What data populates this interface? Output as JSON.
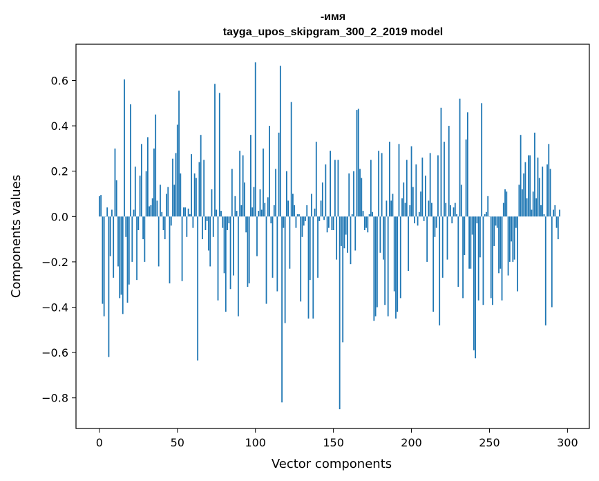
{
  "chart_data": {
    "type": "bar",
    "title": "-имя",
    "subtitle": "tayga_upos_skipgram_300_2_2019 model",
    "xlabel": "Vector components",
    "ylabel": "Components values",
    "xlim": [
      -15,
      314
    ],
    "ylim": [
      -0.935,
      0.76
    ],
    "xticks": [
      0,
      50,
      100,
      150,
      200,
      250,
      300
    ],
    "yticks": [
      -0.8,
      -0.6,
      -0.4,
      -0.2,
      0.0,
      0.2,
      0.4,
      0.6
    ],
    "ytick_labels": [
      "−0.8",
      "−0.6",
      "−0.4",
      "−0.2",
      "0.0",
      "0.2",
      "0.4",
      "0.6"
    ],
    "grid": false,
    "bar_color": "#1f77b4",
    "values": [
      0.09,
      0.095,
      -0.385,
      -0.44,
      0.0,
      0.04,
      -0.62,
      -0.175,
      0.03,
      -0.27,
      0.3,
      0.16,
      -0.22,
      -0.36,
      -0.345,
      -0.43,
      0.605,
      -0.09,
      -0.38,
      -0.3,
      0.495,
      -0.2,
      0.03,
      0.22,
      -0.28,
      -0.06,
      0.18,
      0.32,
      -0.1,
      -0.2,
      0.2,
      0.35,
      0.045,
      0.05,
      0.08,
      0.3,
      0.45,
      0.07,
      -0.22,
      0.14,
      0.02,
      -0.06,
      -0.1,
      0.1,
      0.13,
      -0.295,
      -0.04,
      0.255,
      0.14,
      0.28,
      0.405,
      0.555,
      0.19,
      -0.285,
      0.04,
      0.04,
      -0.09,
      0.035,
      0.01,
      0.275,
      -0.05,
      0.19,
      0.17,
      -0.635,
      0.24,
      0.36,
      -0.1,
      0.25,
      -0.06,
      -0.02,
      -0.15,
      -0.22,
      0.12,
      -0.09,
      0.585,
      0.03,
      -0.37,
      0.545,
      0.025,
      -0.05,
      -0.25,
      -0.42,
      -0.06,
      -0.03,
      -0.32,
      0.21,
      -0.26,
      0.09,
      0.025,
      -0.44,
      0.29,
      0.05,
      0.27,
      0.15,
      -0.07,
      -0.31,
      -0.295,
      0.36,
      0.04,
      0.13,
      0.68,
      -0.175,
      0.025,
      0.12,
      0.03,
      0.3,
      0.06,
      -0.385,
      0.085,
      0.4,
      -0.03,
      -0.27,
      0.05,
      0.21,
      -0.33,
      0.37,
      0.665,
      -0.82,
      -0.05,
      -0.47,
      0.2,
      0.07,
      -0.23,
      0.505,
      0.1,
      0.05,
      -0.05,
      0.01,
      0.01,
      -0.375,
      -0.09,
      -0.04,
      -0.02,
      0.05,
      -0.45,
      -0.28,
      0.1,
      -0.45,
      0.035,
      0.33,
      -0.27,
      -0.02,
      0.07,
      0.15,
      -0.015,
      0.23,
      -0.07,
      -0.05,
      0.29,
      -0.06,
      -0.06,
      0.25,
      -0.19,
      0.25,
      -0.85,
      -0.13,
      -0.555,
      -0.14,
      -0.08,
      -0.16,
      0.19,
      -0.21,
      0.01,
      0.2,
      -0.15,
      0.47,
      0.475,
      0.21,
      0.17,
      0.025,
      -0.06,
      -0.05,
      -0.07,
      0.01,
      0.25,
      0.02,
      -0.46,
      -0.44,
      -0.4,
      0.29,
      -0.16,
      0.28,
      -0.19,
      -0.39,
      0.07,
      -0.44,
      0.33,
      0.07,
      0.1,
      -0.33,
      -0.45,
      -0.42,
      0.32,
      -0.36,
      0.08,
      0.15,
      0.06,
      0.25,
      -0.24,
      0.05,
      0.31,
      0.13,
      -0.03,
      0.23,
      -0.04,
      0.02,
      0.11,
      0.26,
      -0.02,
      0.18,
      -0.2,
      0.07,
      0.28,
      0.06,
      -0.42,
      -0.09,
      -0.05,
      0.27,
      -0.48,
      0.48,
      -0.27,
      0.33,
      0.06,
      -0.19,
      0.4,
      0.05,
      -0.03,
      0.04,
      0.06,
      0.01,
      -0.31,
      0.52,
      0.14,
      -0.36,
      -0.17,
      0.34,
      0.46,
      -0.23,
      -0.23,
      -0.08,
      -0.59,
      -0.625,
      -0.03,
      -0.37,
      -0.18,
      0.5,
      -0.39,
      0.01,
      0.02,
      0.09,
      0.0,
      -0.36,
      -0.39,
      -0.13,
      -0.04,
      -0.05,
      -0.25,
      -0.23,
      -0.37,
      0.06,
      0.12,
      0.11,
      -0.26,
      -0.2,
      -0.11,
      -0.2,
      -0.19,
      -0.05,
      -0.33,
      0.14,
      0.36,
      0.12,
      0.19,
      0.24,
      0.08,
      0.27,
      0.27,
      0.03,
      0.11,
      0.37,
      0.08,
      0.26,
      0.17,
      0.05,
      0.22,
      0.01,
      -0.48,
      0.23,
      0.32,
      0.21,
      -0.4,
      0.03,
      0.05,
      -0.05,
      -0.1,
      0.03
    ]
  }
}
